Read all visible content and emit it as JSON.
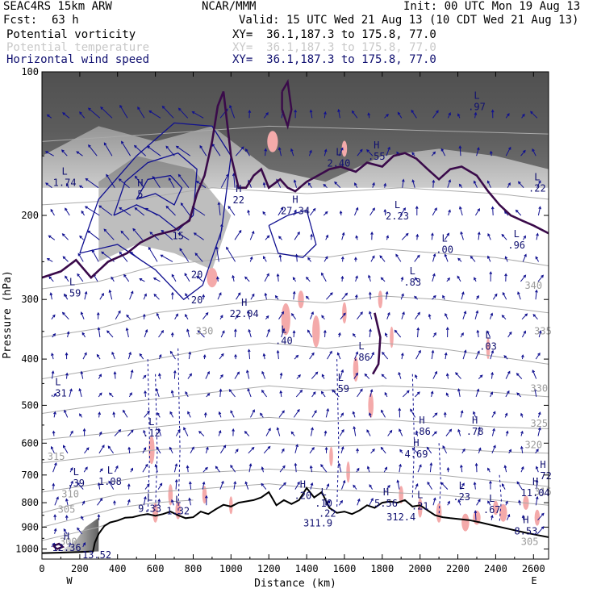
{
  "header": {
    "model": "SEAC4RS 15km ARW",
    "org": "NCAR/MMM",
    "init": "Init: 00 UTC Mon 19 Aug 13",
    "fcst_label": "Fcst:",
    "fcst_value": "63 h",
    "valid": "Valid: 15 UTC Wed 21 Aug 13 (10 CDT Wed 21 Aug 13)",
    "fields": [
      {
        "name": "Potential vorticity",
        "xy": "XY=  36.1,187.3 to 175.8, 77.0",
        "color": "#000000"
      },
      {
        "name": "Potential temperature",
        "xy": "XY=  36.1,187.3 to 175.8, 77.0",
        "color": "#c8c8c8"
      },
      {
        "name": "Horizontal wind speed",
        "xy": "XY=  36.1,187.3 to 175.8, 77.0",
        "color": "#101070"
      }
    ]
  },
  "colors": {
    "theta_contour": "#aaaaaa",
    "pv_contour": "#3a0a4a",
    "wind_contour": "#101090",
    "wind_arrow": "#101090",
    "pv_fill": "#f4aaaa",
    "terrain": "#000000"
  },
  "chart_data": {
    "type": "vertical-cross-section",
    "xlabel": "Distance (km)",
    "ylabel": "Pressure (hPa)",
    "xlim": [
      0,
      2680
    ],
    "ylim": [
      1050,
      100
    ],
    "y_scale": "log",
    "x_ticks": [
      "0",
      "200",
      "400",
      "600",
      "800",
      "1000",
      "1200",
      "1400",
      "1600",
      "1800",
      "2000",
      "2200",
      "2400",
      "2600"
    ],
    "y_ticks": [
      "100",
      "200",
      "300",
      "400",
      "500",
      "600",
      "700",
      "800",
      "900",
      "1000"
    ],
    "x_end_labels": {
      "left": "W",
      "right": "E"
    },
    "theta_labels": [
      {
        "text": "315",
        "x": 75,
        "p": 650
      },
      {
        "text": "310",
        "x": 150,
        "p": 780
      },
      {
        "text": "305",
        "x": 130,
        "p": 840
      },
      {
        "text": "300",
        "x": 140,
        "p": 980
      },
      {
        "text": "330",
        "x": 860,
        "p": 355
      },
      {
        "text": "340",
        "x": 2600,
        "p": 285
      },
      {
        "text": "335",
        "x": 2650,
        "p": 355
      },
      {
        "text": "330",
        "x": 2630,
        "p": 468
      },
      {
        "text": "325",
        "x": 2630,
        "p": 555
      },
      {
        "text": "320",
        "x": 2600,
        "p": 615
      },
      {
        "text": "315",
        "x": 2650,
        "p": 770
      },
      {
        "text": "305",
        "x": 2580,
        "p": 980
      }
    ],
    "extrema": [
      {
        "kind": "L",
        "value": "1.74",
        "x": 120,
        "p": 170
      },
      {
        "kind": "L",
        "value": ".59",
        "x": 160,
        "p": 290
      },
      {
        "kind": "H",
        "value": "5",
        "x": 520,
        "p": 180
      },
      {
        "kind": "",
        "value": "15",
        "x": 720,
        "p": 220
      },
      {
        "kind": "",
        "value": "20",
        "x": 820,
        "p": 265
      },
      {
        "kind": "",
        "value": "20",
        "x": 820,
        "p": 300
      },
      {
        "kind": "H",
        "value": "22",
        "x": 1040,
        "p": 185
      },
      {
        "kind": "H",
        "value": "22.04",
        "x": 1070,
        "p": 320
      },
      {
        "kind": "L",
        "value": ".40",
        "x": 1280,
        "p": 365
      },
      {
        "kind": "H",
        "value": "27.34",
        "x": 1340,
        "p": 195
      },
      {
        "kind": "L",
        "value": "2.40",
        "x": 1570,
        "p": 155
      },
      {
        "kind": "L",
        "value": ".86",
        "x": 1690,
        "p": 395
      },
      {
        "kind": "L",
        "value": ".59",
        "x": 1580,
        "p": 460
      },
      {
        "kind": "H",
        "value": ".55",
        "x": 1770,
        "p": 150
      },
      {
        "kind": "L",
        "value": "2.23",
        "x": 1880,
        "p": 200
      },
      {
        "kind": "L",
        "value": ".00",
        "x": 2130,
        "p": 235
      },
      {
        "kind": "L",
        "value": ".83",
        "x": 1960,
        "p": 275
      },
      {
        "kind": "L",
        "value": ".03",
        "x": 2360,
        "p": 375
      },
      {
        "kind": "L",
        "value": ".97",
        "x": 2300,
        "p": 118
      },
      {
        "kind": "L",
        "value": ".96",
        "x": 2510,
        "p": 230
      },
      {
        "kind": "L",
        "value": ".22",
        "x": 2620,
        "p": 175
      },
      {
        "kind": "L",
        "value": ".31",
        "x": 85,
        "p": 470
      },
      {
        "kind": "L",
        "value": ".12",
        "x": 580,
        "p": 570
      },
      {
        "kind": "H",
        "value": ".86",
        "x": 2010,
        "p": 565
      },
      {
        "kind": "H",
        "value": ".78",
        "x": 2290,
        "p": 565
      },
      {
        "kind": "H",
        "value": "4.69",
        "x": 1980,
        "p": 630
      },
      {
        "kind": "L",
        "value": ".39",
        "x": 180,
        "p": 725
      },
      {
        "kind": "L",
        "value": "1.08",
        "x": 360,
        "p": 720
      },
      {
        "kind": "L",
        "value": "9.33",
        "x": 570,
        "p": 820
      },
      {
        "kind": "L",
        "value": "1.32",
        "x": 720,
        "p": 830
      },
      {
        "kind": "H",
        "value": ".20",
        "x": 1380,
        "p": 770
      },
      {
        "kind": "L",
        "value": ".10",
        "x": 1490,
        "p": 800
      },
      {
        "kind": "L",
        "value": ".22",
        "x": 1510,
        "p": 840
      },
      {
        "kind": "",
        "value": "311.9",
        "x": 1460,
        "p": 880
      },
      {
        "kind": "H",
        "value": "5.56",
        "x": 1820,
        "p": 800
      },
      {
        "kind": "L",
        "value": ".21",
        "x": 2000,
        "p": 810
      },
      {
        "kind": "",
        "value": "312.4",
        "x": 1900,
        "p": 855
      },
      {
        "kind": "L",
        "value": ".23",
        "x": 2220,
        "p": 775
      },
      {
        "kind": "L",
        "value": ".67",
        "x": 2380,
        "p": 825
      },
      {
        "kind": "H",
        "value": "11.04",
        "x": 2610,
        "p": 760
      },
      {
        "kind": "H",
        "value": ".72",
        "x": 2650,
        "p": 700
      },
      {
        "kind": "H",
        "value": "8.53",
        "x": 2560,
        "p": 915
      },
      {
        "kind": "H",
        "value": "12.36",
        "x": 130,
        "p": 990
      },
      {
        "kind": "",
        "value": "13.52",
        "x": 290,
        "p": 1025
      }
    ]
  }
}
